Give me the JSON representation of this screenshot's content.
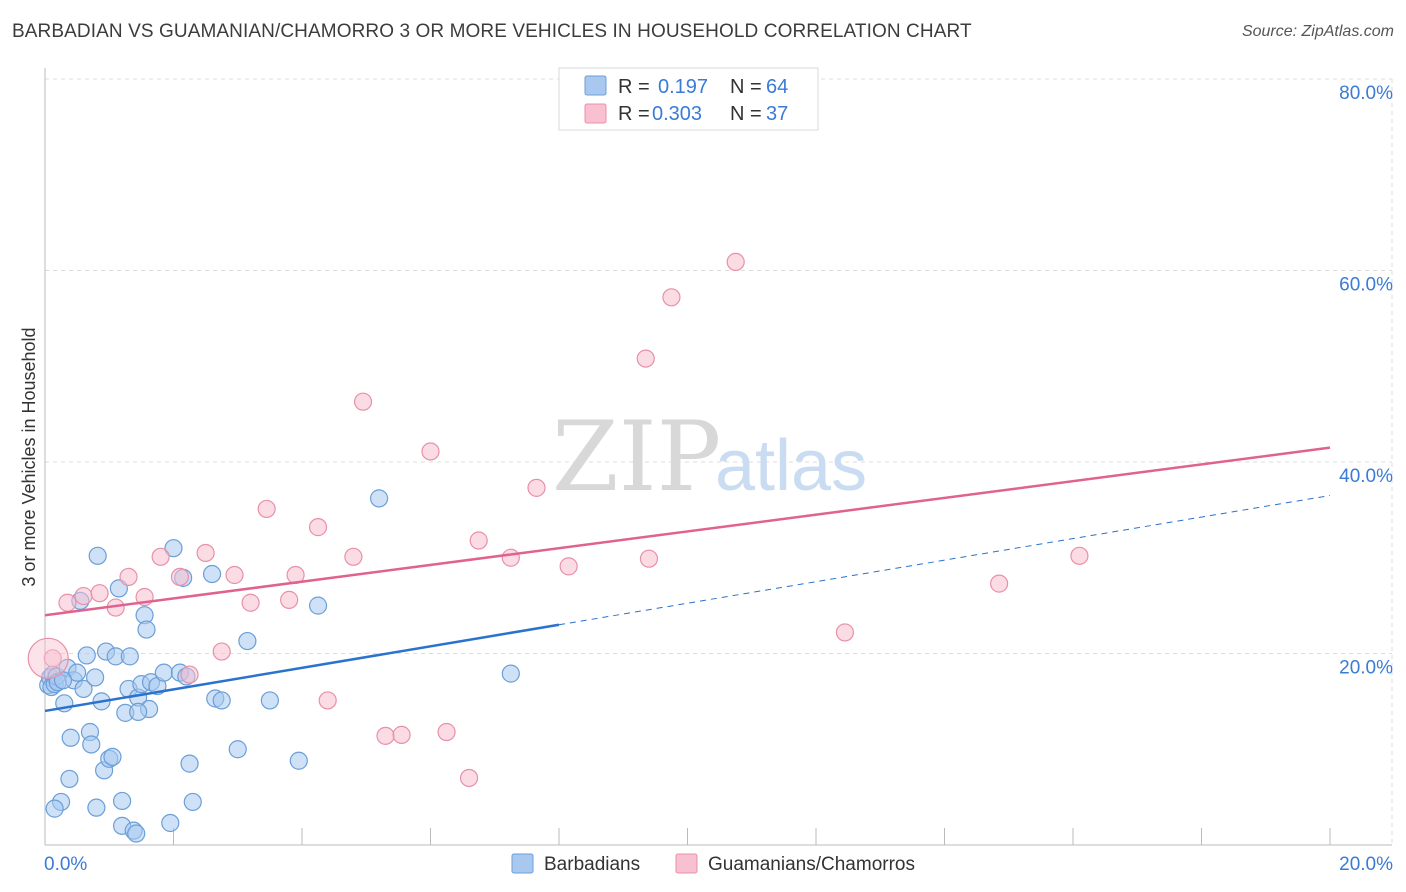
{
  "title": "BARBADIAN VS GUAMANIAN/CHAMORRO 3 OR MORE VEHICLES IN HOUSEHOLD CORRELATION CHART",
  "source": "Source: ZipAtlas.com",
  "watermark": {
    "zip": "ZIP",
    "atlas": "atlas"
  },
  "legend": {
    "r_label": "R =",
    "n_label": "N =",
    "rows": [
      {
        "r": "0.197",
        "n": "64",
        "color": "#a8c8f0",
        "border": "#6a9fd8"
      },
      {
        "r": "0.303",
        "n": "37",
        "color": "#f8c0d0",
        "border": "#e890a8"
      }
    ]
  },
  "chart_data": {
    "type": "scatter",
    "xlabel": "",
    "ylabel": "3 or more Vehicles in Household",
    "xlim": [
      0,
      20
    ],
    "ylim": [
      0,
      80
    ],
    "x_tick_labels": [
      "0.0%",
      "20.0%"
    ],
    "y_ticks": [
      20,
      40,
      60,
      80
    ],
    "y_tick_labels": [
      "20.0%",
      "40.0%",
      "60.0%",
      "80.0%"
    ],
    "grid": true,
    "series": [
      {
        "name": "Barbadians",
        "color": "#6a9fd8",
        "fill": "#a8c8f0",
        "line_color": "#2a72cc",
        "trend": {
          "x_start": 0,
          "y_start": 14.0,
          "x_solid_end": 8.0,
          "y_solid_end": 23.0,
          "x_end": 20,
          "y_end": 36.5
        },
        "points": [
          [
            0.05,
            16.7
          ],
          [
            0.08,
            17.5
          ],
          [
            0.1,
            16.5
          ],
          [
            0.12,
            17.8
          ],
          [
            0.15,
            16.8
          ],
          [
            0.18,
            17.6
          ],
          [
            0.2,
            17.0
          ],
          [
            0.25,
            4.5
          ],
          [
            0.3,
            14.8
          ],
          [
            0.35,
            18.5
          ],
          [
            0.4,
            11.2
          ],
          [
            0.45,
            17.2
          ],
          [
            0.5,
            18.0
          ],
          [
            0.55,
            25.5
          ],
          [
            0.6,
            16.3
          ],
          [
            0.65,
            19.8
          ],
          [
            0.7,
            11.8
          ],
          [
            0.72,
            10.5
          ],
          [
            0.78,
            17.5
          ],
          [
            0.82,
            30.2
          ],
          [
            0.88,
            15.0
          ],
          [
            0.92,
            7.8
          ],
          [
            0.95,
            20.2
          ],
          [
            1.0,
            9.0
          ],
          [
            1.05,
            9.2
          ],
          [
            1.1,
            19.7
          ],
          [
            1.15,
            26.8
          ],
          [
            1.2,
            2.0
          ],
          [
            1.25,
            13.8
          ],
          [
            1.3,
            16.3
          ],
          [
            1.32,
            19.7
          ],
          [
            1.38,
            1.5
          ],
          [
            1.42,
            1.2
          ],
          [
            1.45,
            15.4
          ],
          [
            1.5,
            16.8
          ],
          [
            1.55,
            24.0
          ],
          [
            1.58,
            22.5
          ],
          [
            1.62,
            14.2
          ],
          [
            1.65,
            17.0
          ],
          [
            1.75,
            16.6
          ],
          [
            1.85,
            18.0
          ],
          [
            1.95,
            2.3
          ],
          [
            2.0,
            31.0
          ],
          [
            2.1,
            18.0
          ],
          [
            2.15,
            27.9
          ],
          [
            2.2,
            17.6
          ],
          [
            2.25,
            8.5
          ],
          [
            2.3,
            4.5
          ],
          [
            2.6,
            28.3
          ],
          [
            2.65,
            15.3
          ],
          [
            2.75,
            15.1
          ],
          [
            3.0,
            10.0
          ],
          [
            3.15,
            21.3
          ],
          [
            3.5,
            15.1
          ],
          [
            3.95,
            8.8
          ],
          [
            4.25,
            25.0
          ],
          [
            5.2,
            36.2
          ],
          [
            7.25,
            17.9
          ],
          [
            0.15,
            3.8
          ],
          [
            0.38,
            6.9
          ],
          [
            1.2,
            4.6
          ],
          [
            0.8,
            3.9
          ],
          [
            1.45,
            13.9
          ],
          [
            0.28,
            17.2
          ]
        ]
      },
      {
        "name": "Guamanians/Chamorros",
        "color": "#e890a8",
        "fill": "#f8c0d0",
        "line_color": "#e0628e",
        "trend": {
          "x_start": 0,
          "y_start": 24.0,
          "x_end": 20,
          "y_end": 41.5
        },
        "points": [
          [
            0.12,
            19.5
          ],
          [
            0.35,
            25.3
          ],
          [
            0.6,
            26.0
          ],
          [
            0.85,
            26.3
          ],
          [
            1.1,
            24.8
          ],
          [
            1.3,
            28.0
          ],
          [
            1.55,
            25.9
          ],
          [
            1.8,
            30.1
          ],
          [
            2.1,
            28.0
          ],
          [
            2.25,
            17.8
          ],
          [
            2.5,
            30.5
          ],
          [
            2.75,
            20.2
          ],
          [
            2.95,
            28.2
          ],
          [
            3.2,
            25.3
          ],
          [
            3.45,
            35.1
          ],
          [
            3.8,
            25.6
          ],
          [
            3.9,
            28.2
          ],
          [
            4.25,
            33.2
          ],
          [
            4.4,
            15.1
          ],
          [
            4.8,
            30.1
          ],
          [
            4.95,
            46.3
          ],
          [
            5.3,
            11.4
          ],
          [
            5.55,
            11.5
          ],
          [
            6.0,
            41.1
          ],
          [
            6.25,
            11.8
          ],
          [
            6.6,
            7.0
          ],
          [
            6.75,
            31.8
          ],
          [
            7.25,
            30.0
          ],
          [
            7.65,
            37.3
          ],
          [
            8.15,
            29.1
          ],
          [
            9.35,
            50.8
          ],
          [
            9.4,
            29.9
          ],
          [
            9.75,
            57.2
          ],
          [
            10.75,
            60.9
          ],
          [
            12.45,
            22.2
          ],
          [
            14.85,
            27.3
          ],
          [
            16.1,
            30.2
          ]
        ]
      }
    ]
  },
  "bottom_legend": [
    {
      "label": "Barbadians",
      "color": "#a8c8f0",
      "border": "#6a9fd8"
    },
    {
      "label": "Guamanians/Chamorros",
      "color": "#f8c0d0",
      "border": "#e890a8"
    }
  ]
}
